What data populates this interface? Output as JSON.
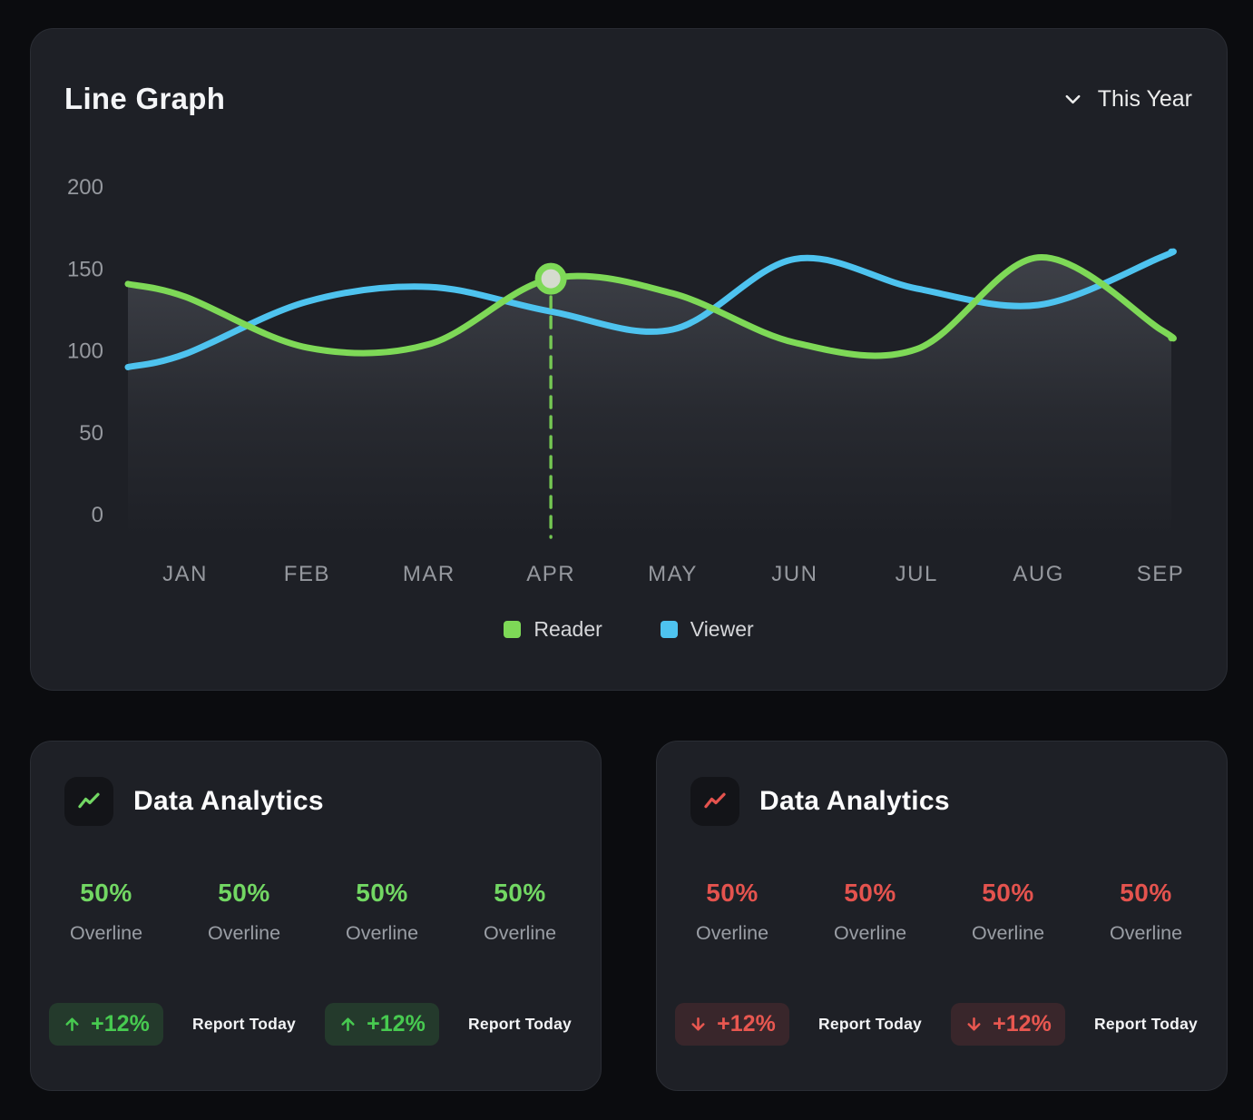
{
  "chart_card": {
    "period_label": "This Year"
  },
  "chart_data": {
    "type": "line",
    "title": "Line Graph",
    "x_categories": [
      "JAN",
      "FEB",
      "MAR",
      "APR",
      "MAY",
      "JUN",
      "JUL",
      "AUG",
      "SEP"
    ],
    "y_ticks": [
      0,
      50,
      100,
      150,
      200
    ],
    "ylim": [
      0,
      200
    ],
    "grid": false,
    "legend_position": "bottom-center",
    "series": [
      {
        "name": "Reader",
        "color": "#7ed957",
        "area_fill": true,
        "values": [
          133,
          102,
          104,
          144,
          135,
          105,
          101,
          157,
          113
        ]
      },
      {
        "name": "Viewer",
        "color": "#4ec3ef",
        "area_fill": false,
        "values": [
          98,
          130,
          139,
          124,
          113,
          156,
          138,
          128,
          157
        ]
      }
    ],
    "highlight_point": {
      "series": "Reader",
      "category": "APR",
      "value": 144
    }
  },
  "analytics_cards": [
    {
      "title": "Data Analytics",
      "trend": "up",
      "accent_color": "#72d763",
      "badge_text_color": "#47ca50",
      "badge_bg": "rgba(77,217,84,0.14)",
      "stats": [
        {
          "value": "50%",
          "label": "Overline"
        },
        {
          "value": "50%",
          "label": "Overline"
        },
        {
          "value": "50%",
          "label": "Overline"
        },
        {
          "value": "50%",
          "label": "Overline"
        }
      ],
      "footer": {
        "badge1": "+12%",
        "action1": "Report Today",
        "badge2": "+12%",
        "action2": "Report Today"
      }
    },
    {
      "title": "Data Analytics",
      "trend": "down",
      "accent_color": "#e4534e",
      "badge_text_color": "#e85750",
      "badge_bg": "rgba(228,80,76,0.14)",
      "stats": [
        {
          "value": "50%",
          "label": "Overline"
        },
        {
          "value": "50%",
          "label": "Overline"
        },
        {
          "value": "50%",
          "label": "Overline"
        },
        {
          "value": "50%",
          "label": "Overline"
        }
      ],
      "footer": {
        "badge1": "+12%",
        "action1": "Report Today",
        "badge2": "+12%",
        "action2": "Report Today"
      }
    }
  ]
}
